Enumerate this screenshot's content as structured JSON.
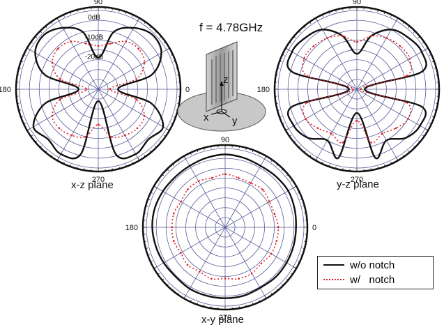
{
  "figure": {
    "frequency_label": "f = 4.78GHz",
    "antenna_axes": {
      "x": "x",
      "y": "y",
      "z": "z"
    }
  },
  "colors": {
    "without_notch": "#111111",
    "with_notch": "#e0202a",
    "grid": "#5a5a9a"
  },
  "legend": [
    {
      "label": "w/o notch",
      "style": "solid",
      "color": "#111111"
    },
    {
      "label": "w/   notch",
      "style": "dotted",
      "color": "#e0202a"
    }
  ],
  "chart_data": [
    {
      "type": "polar",
      "plane_label": "x-z plane",
      "angle_tick_labels": [
        "0",
        "90",
        "180",
        "270"
      ],
      "radial_tick_labels": [
        "0dB",
        "-10dB",
        "-20dB"
      ],
      "radial_range_dB": [
        -40,
        0
      ],
      "radial_grid_dB": [
        0,
        -5,
        -10,
        -15,
        -20,
        -25,
        -30,
        -35
      ],
      "series": [
        {
          "name": "w/o notch",
          "angles_deg": [
            0,
            15,
            30,
            45,
            60,
            75,
            90,
            105,
            120,
            135,
            150,
            165,
            180,
            195,
            210,
            225,
            240,
            255,
            270,
            285,
            300,
            315,
            330,
            345
          ],
          "gain_dB": [
            -30,
            -12,
            -3,
            -1,
            -4,
            -10,
            -24,
            -10,
            -4,
            -1,
            -3,
            -12,
            -30,
            -12,
            -2,
            -4,
            -2,
            -6,
            -34,
            -6,
            -2,
            -4,
            -2,
            -12
          ]
        },
        {
          "name": "w/   notch",
          "angles_deg": [
            0,
            15,
            30,
            45,
            60,
            75,
            90,
            105,
            120,
            135,
            150,
            165,
            180,
            195,
            210,
            225,
            240,
            255,
            270,
            285,
            300,
            315,
            330,
            345
          ],
          "gain_dB": [
            -34,
            -20,
            -13,
            -11,
            -12,
            -16,
            -18,
            -16,
            -12,
            -11,
            -13,
            -20,
            -34,
            -20,
            -13,
            -12,
            -13,
            -15,
            -22,
            -15,
            -13,
            -12,
            -13,
            -20
          ]
        }
      ]
    },
    {
      "type": "polar",
      "plane_label": "y-z plane",
      "angle_tick_labels": [
        "0",
        "90",
        "180",
        "270"
      ],
      "radial_range_dB": [
        -40,
        0
      ],
      "radial_grid_dB": [
        0,
        -5,
        -10,
        -15,
        -20,
        -25,
        -30,
        -35
      ],
      "series": [
        {
          "name": "w/o notch",
          "angles_deg": [
            0,
            15,
            30,
            45,
            60,
            75,
            90,
            105,
            120,
            135,
            150,
            165,
            180,
            195,
            210,
            225,
            240,
            255,
            270,
            285,
            300,
            315,
            330,
            345
          ],
          "gain_dB": [
            -36,
            -6,
            -2,
            -3,
            -5,
            -12,
            -22,
            -12,
            -5,
            -3,
            -2,
            -6,
            -36,
            -6,
            -3,
            -5,
            -10,
            -4,
            -28,
            -4,
            -10,
            -5,
            -3,
            -6
          ]
        },
        {
          "name": "w/   notch",
          "angles_deg": [
            0,
            15,
            30,
            45,
            60,
            75,
            90,
            105,
            120,
            135,
            150,
            165,
            180,
            195,
            210,
            225,
            240,
            255,
            270,
            285,
            300,
            315,
            330,
            345
          ],
          "gain_dB": [
            -38,
            -14,
            -9,
            -9,
            -10,
            -12,
            -16,
            -12,
            -10,
            -9,
            -9,
            -14,
            -38,
            -14,
            -10,
            -12,
            -14,
            -12,
            -24,
            -12,
            -14,
            -12,
            -10,
            -14
          ]
        }
      ]
    },
    {
      "type": "polar",
      "plane_label": "x-y plane",
      "angle_tick_labels": [
        "0",
        "90",
        "180",
        "270"
      ],
      "radial_range_dB": [
        -40,
        0
      ],
      "radial_grid_dB": [
        0,
        -5,
        -10,
        -15,
        -20,
        -25,
        -30,
        -35
      ],
      "series": [
        {
          "name": "w/o notch",
          "angles_deg": [
            0,
            15,
            30,
            45,
            60,
            75,
            90,
            105,
            120,
            135,
            150,
            165,
            180,
            195,
            210,
            225,
            240,
            255,
            270,
            285,
            300,
            315,
            330,
            345
          ],
          "gain_dB": [
            -4,
            -3.5,
            -3,
            -3.5,
            -4,
            -3.5,
            -3,
            -3.5,
            -4,
            -4,
            -3.5,
            -3,
            -3,
            -3.5,
            -4,
            -4.5,
            -4,
            -4,
            -4,
            -4,
            -4.5,
            -4,
            -4,
            -4
          ]
        },
        {
          "name": "w/   notch",
          "angles_deg": [
            0,
            15,
            30,
            45,
            60,
            75,
            90,
            105,
            120,
            135,
            150,
            165,
            180,
            195,
            210,
            225,
            240,
            255,
            270,
            285,
            300,
            315,
            330,
            345
          ],
          "gain_dB": [
            -13,
            -14,
            -14,
            -13,
            -14,
            -14,
            -13,
            -14,
            -13,
            -13,
            -14,
            -13,
            -13,
            -13,
            -14,
            -13,
            -14,
            -13,
            -14,
            -13,
            -13,
            -14,
            -13,
            -13
          ]
        }
      ]
    }
  ]
}
